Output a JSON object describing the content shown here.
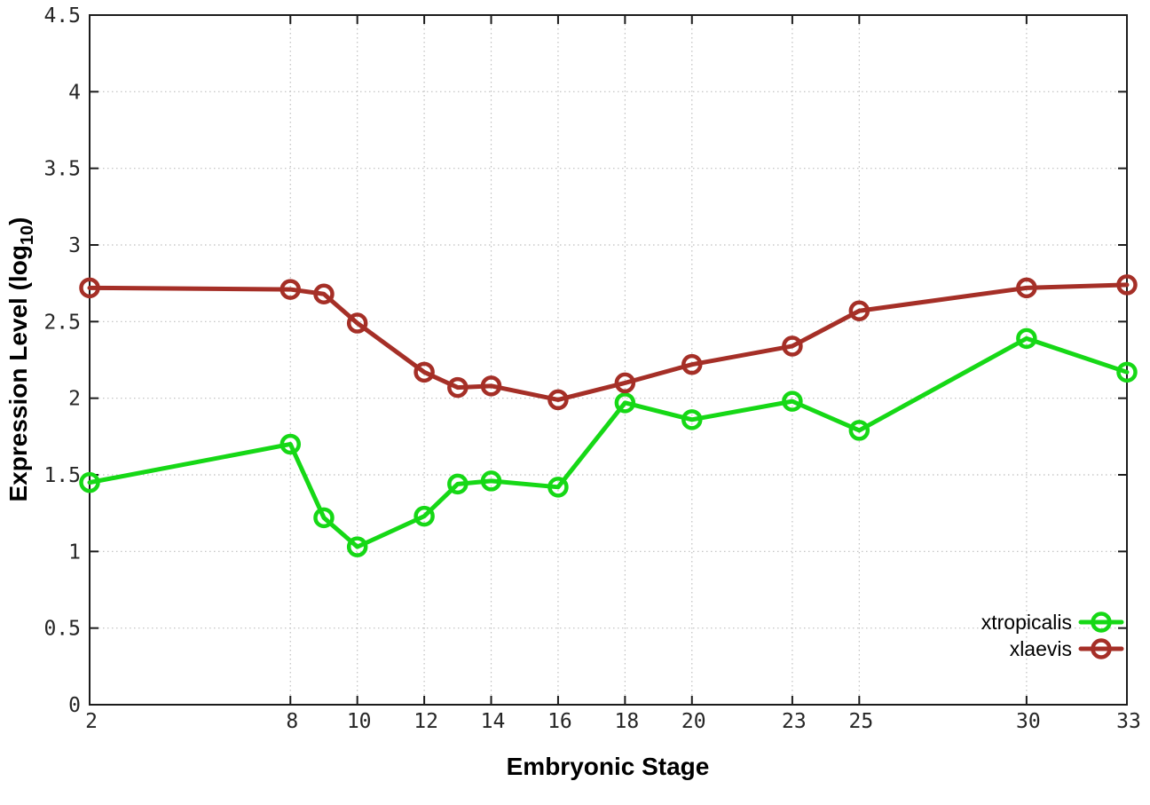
{
  "chart_data": {
    "type": "line",
    "title": "",
    "xlabel": "Embryonic Stage",
    "ylabel_parts": {
      "pre": "Expression Level (log",
      "sub": "10",
      "post": ")"
    },
    "xlim": [
      2,
      33
    ],
    "ylim": [
      0,
      4.5
    ],
    "grid": true,
    "legend_position": "bottom-right",
    "x_ticks": [
      {
        "v": 2,
        "label": "2"
      },
      {
        "v": 8,
        "label": "8"
      },
      {
        "v": 10,
        "label": "10"
      },
      {
        "v": 12,
        "label": "12"
      },
      {
        "v": 14,
        "label": "14"
      },
      {
        "v": 16,
        "label": "16"
      },
      {
        "v": 18,
        "label": "18"
      },
      {
        "v": 20,
        "label": "20"
      },
      {
        "v": 23,
        "label": "23"
      },
      {
        "v": 25,
        "label": "25"
      },
      {
        "v": 30,
        "label": "30"
      },
      {
        "v": 33,
        "label": "33"
      }
    ],
    "y_ticks": [
      {
        "v": 0,
        "label": "0"
      },
      {
        "v": 0.5,
        "label": "0.5"
      },
      {
        "v": 1,
        "label": "1"
      },
      {
        "v": 1.5,
        "label": "1.5"
      },
      {
        "v": 2,
        "label": "2"
      },
      {
        "v": 2.5,
        "label": "2.5"
      },
      {
        "v": 3,
        "label": "3"
      },
      {
        "v": 3.5,
        "label": "3.5"
      },
      {
        "v": 4,
        "label": "4"
      },
      {
        "v": 4.5,
        "label": "4.5"
      }
    ],
    "x": [
      2,
      8,
      9,
      10,
      12,
      13,
      14,
      16,
      18,
      20,
      23,
      25,
      30,
      33
    ],
    "series": [
      {
        "name": "xtropicalis",
        "color": "#16d816",
        "values": [
          1.45,
          1.7,
          1.22,
          1.03,
          1.23,
          1.44,
          1.46,
          1.42,
          1.97,
          1.86,
          1.98,
          1.79,
          2.39,
          2.17
        ]
      },
      {
        "name": "xlaevis",
        "color": "#a52f27",
        "values": [
          2.72,
          2.71,
          2.68,
          2.49,
          2.17,
          2.07,
          2.08,
          1.99,
          2.1,
          2.22,
          2.34,
          2.57,
          2.72,
          2.74
        ]
      }
    ],
    "style": {
      "grid_color": "#bfbfbf",
      "frame_color": "#1c1c1c",
      "background": "#ffffff",
      "line_width": 5,
      "marker_radius": 9.5,
      "marker_stroke": 4.5
    }
  }
}
